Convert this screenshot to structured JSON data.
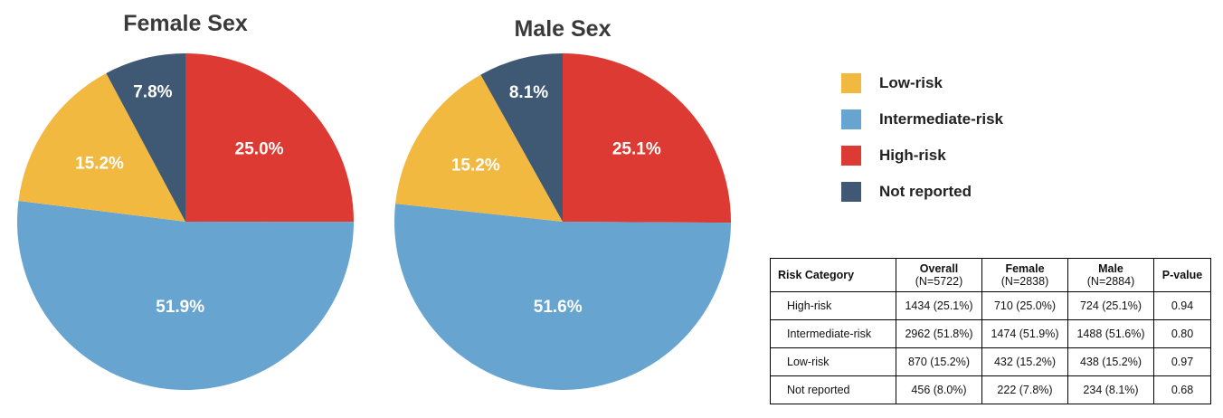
{
  "chart_data": [
    {
      "type": "pie",
      "title": "Female Sex",
      "categories": [
        "High-risk",
        "Intermediate-risk",
        "Low-risk",
        "Not reported"
      ],
      "values": [
        25.0,
        51.9,
        15.2,
        7.8
      ],
      "labels": [
        "25.0%",
        "51.9%",
        "15.2%",
        "7.8%"
      ],
      "start": "top, clockwise"
    },
    {
      "type": "pie",
      "title": "Male Sex",
      "categories": [
        "High-risk",
        "Intermediate-risk",
        "Low-risk",
        "Not reported"
      ],
      "values": [
        25.1,
        51.6,
        15.2,
        8.1
      ],
      "labels": [
        "25.1%",
        "51.6%",
        "15.2%",
        "8.1%"
      ],
      "start": "top, clockwise"
    },
    {
      "type": "table",
      "headers": [
        {
          "line1": "Risk Category",
          "line2": ""
        },
        {
          "line1": "Overall",
          "line2": "(N=5722)"
        },
        {
          "line1": "Female",
          "line2": "(N=2838)"
        },
        {
          "line1": "Male",
          "line2": "(N=2884)"
        },
        {
          "line1": "P-value",
          "line2": ""
        }
      ],
      "rows": [
        [
          "High-risk",
          "1434 (25.1%)",
          "710 (25.0%)",
          "724 (25.1%)",
          "0.94"
        ],
        [
          "Intermediate-risk",
          "2962 (51.8%)",
          "1474 (51.9%)",
          "1488 (51.6%)",
          "0.80"
        ],
        [
          "Low-risk",
          "870 (15.2%)",
          "432 (15.2%)",
          "438 (15.2%)",
          "0.97"
        ],
        [
          "Not reported",
          "456 (8.0%)",
          "222 (7.8%)",
          "234 (8.1%)",
          "0.68"
        ]
      ]
    }
  ],
  "legend": [
    {
      "label": "Low-risk",
      "color": "#f2b941"
    },
    {
      "label": "Intermediate-risk",
      "color": "#67a4cf"
    },
    {
      "label": "High-risk",
      "color": "#dc3a32"
    },
    {
      "label": "Not reported",
      "color": "#3f5975"
    }
  ],
  "colors": {
    "High-risk": "#dc3a32",
    "Intermediate-risk": "#67a4cf",
    "Low-risk": "#f2b941",
    "Not reported": "#3f5975"
  }
}
